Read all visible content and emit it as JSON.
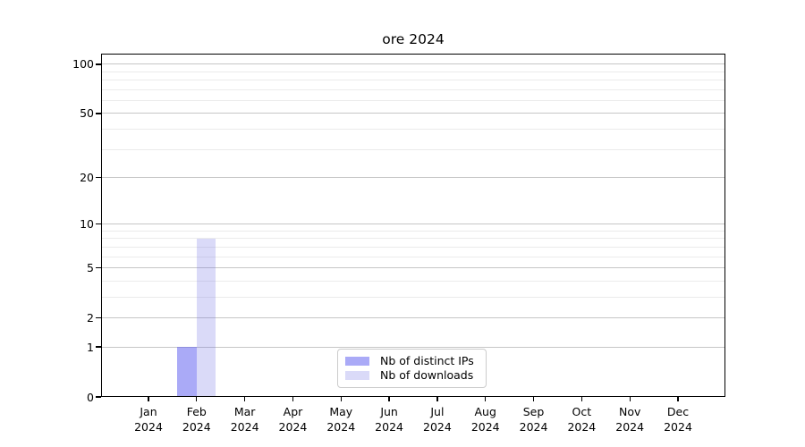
{
  "title": "ore 2024",
  "chart_data": {
    "type": "bar",
    "title": "ore 2024",
    "categories": [
      "Jan",
      "Feb",
      "Mar",
      "Apr",
      "May",
      "Jun",
      "Jul",
      "Aug",
      "Sep",
      "Oct",
      "Nov",
      "Dec"
    ],
    "year": "2024",
    "series": [
      {
        "name": "Nb of distinct IPs",
        "color": "rgba(85,85,239,0.5)",
        "color_hex_on_white": "#aaaaf7",
        "values": [
          0,
          1,
          0,
          0,
          0,
          0,
          0,
          0,
          0,
          0,
          0,
          0
        ]
      },
      {
        "name": "Nb of downloads",
        "color": "rgba(107,107,227,0.25)",
        "color_hex_on_white": "#dadaf8",
        "values": [
          0,
          8,
          0,
          0,
          0,
          0,
          0,
          0,
          0,
          0,
          0,
          0
        ]
      }
    ],
    "xlabel": "",
    "ylabel": "",
    "y_axis": {
      "scale": "log1p",
      "major_ticks": [
        0,
        1,
        2,
        5,
        10,
        20,
        50,
        100
      ],
      "minor_ticks": [
        3,
        4,
        6,
        7,
        8,
        9,
        30,
        40,
        60,
        70,
        80,
        90
      ],
      "max": 116
    },
    "grid": {
      "major_color": "#c6c6c6",
      "minor_color": "#ebebeb"
    },
    "legend": {
      "position": "lower center",
      "border_color": "#cccccc"
    }
  }
}
